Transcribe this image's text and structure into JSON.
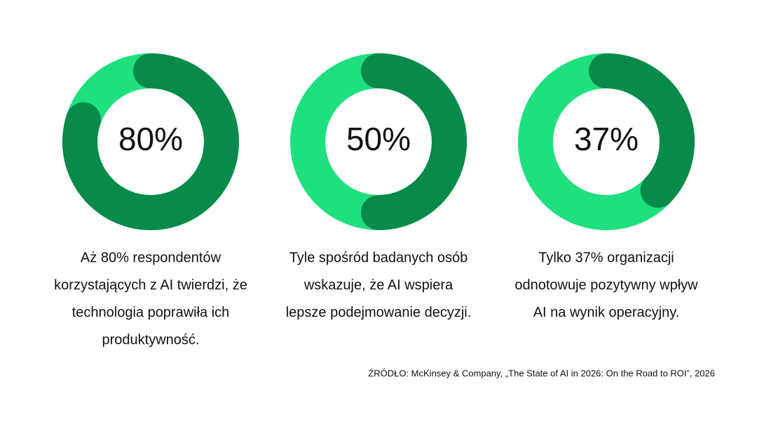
{
  "chart_data": [
    {
      "type": "donut",
      "values": [
        80
      ],
      "value_labels": [
        "80%"
      ],
      "color": "#078a4a",
      "track_color": "#1fe07f",
      "caption": [
        "Aż 80% respondentów",
        "korzystających z AI twierdzi, że",
        "technologia poprawiła ich",
        "produktywność."
      ]
    },
    {
      "type": "donut",
      "values": [
        50
      ],
      "value_labels": [
        "50%"
      ],
      "color": "#078a4a",
      "track_color": "#1fe07f",
      "caption": [
        "Tyle spośród badanych osób",
        "wskazuje, że AI wspiera",
        "lepsze podejmowanie decyzji."
      ]
    },
    {
      "type": "donut",
      "values": [
        37
      ],
      "value_labels": [
        "37%"
      ],
      "color": "#078a4a",
      "track_color": "#1fe07f",
      "caption": [
        "Tylko 37% organizacji",
        "odnotowuje pozytywny wpływ",
        "AI na wynik operacyjny."
      ]
    }
  ],
  "source": "ŹRÓDŁO: McKinsey & Company, „The State of AI in 2026: On the Road to ROI”, 2026"
}
